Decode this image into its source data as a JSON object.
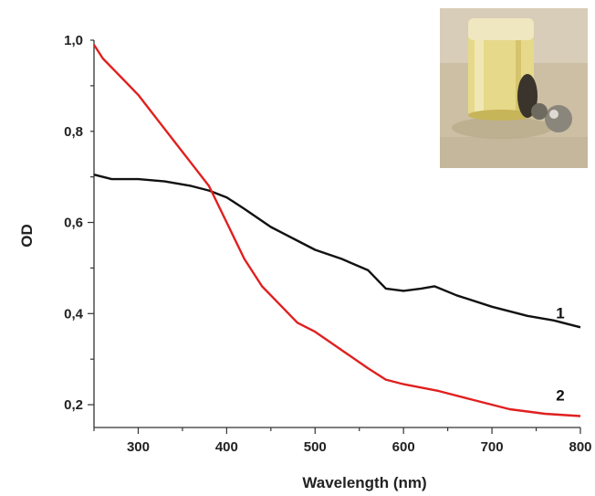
{
  "chart_data": {
    "type": "line",
    "xlabel": "Wavelength (nm)",
    "ylabel": "OD",
    "xlim": [
      250,
      800
    ],
    "ylim": [
      0.15,
      1.0
    ],
    "xticks": [
      300,
      400,
      500,
      600,
      700,
      800
    ],
    "xtick_labels": [
      "300",
      "400",
      "500",
      "600",
      "700",
      "800"
    ],
    "yticks": [
      0.2,
      0.4,
      0.6,
      0.8,
      1.0
    ],
    "ytick_labels": [
      "0,2",
      "0,4",
      "0,6",
      "0,8",
      "1,0"
    ],
    "grid": false,
    "legend": "none",
    "inset_photo": "glass vial with yellow liquid and metal balls",
    "series": [
      {
        "label": "1",
        "color": "#111111",
        "x": [
          250,
          270,
          300,
          330,
          360,
          380,
          400,
          420,
          450,
          480,
          500,
          530,
          560,
          580,
          600,
          620,
          635,
          660,
          700,
          740,
          770,
          800
        ],
        "y": [
          0.705,
          0.695,
          0.695,
          0.69,
          0.68,
          0.67,
          0.655,
          0.63,
          0.59,
          0.56,
          0.54,
          0.52,
          0.495,
          0.455,
          0.45,
          0.455,
          0.46,
          0.44,
          0.415,
          0.395,
          0.385,
          0.37
        ]
      },
      {
        "label": "2",
        "color": "#e0201f",
        "x": [
          250,
          260,
          280,
          300,
          320,
          340,
          360,
          380,
          400,
          420,
          440,
          460,
          480,
          500,
          530,
          560,
          580,
          600,
          640,
          680,
          720,
          760,
          800
        ],
        "y": [
          0.99,
          0.96,
          0.92,
          0.88,
          0.83,
          0.78,
          0.73,
          0.68,
          0.6,
          0.52,
          0.46,
          0.42,
          0.38,
          0.36,
          0.32,
          0.28,
          0.255,
          0.245,
          0.23,
          0.21,
          0.19,
          0.18,
          0.175
        ]
      }
    ]
  }
}
